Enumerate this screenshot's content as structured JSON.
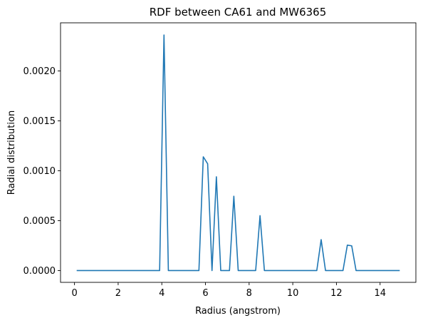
{
  "chart_data": {
    "type": "line",
    "title": "RDF between CA61 and MW6365",
    "xlabel": "Radius (angstrom)",
    "ylabel": "Radial distribution",
    "xlim": [
      -0.64,
      15.64
    ],
    "ylim": [
      -0.000118,
      0.002482
    ],
    "xticks": [
      0,
      2,
      4,
      6,
      8,
      10,
      12,
      14
    ],
    "xtick_labels": [
      "0",
      "2",
      "4",
      "6",
      "8",
      "10",
      "12",
      "14"
    ],
    "yticks": [
      0.0,
      0.0005,
      0.001,
      0.0015,
      0.002
    ],
    "ytick_labels": [
      "0.0000",
      "0.0005",
      "0.0010",
      "0.0015",
      "0.0020"
    ],
    "grid": false,
    "line_color": "#1f77b4",
    "series": [
      {
        "x": [
          0.1,
          3.9,
          4.1,
          4.3,
          5.7,
          5.9,
          6.1,
          6.3,
          6.5,
          6.7,
          7.1,
          7.3,
          7.5,
          8.3,
          8.5,
          8.7,
          11.1,
          11.3,
          11.5,
          12.3,
          12.5,
          12.7,
          12.9,
          14.9
        ],
        "y": [
          0.0,
          0.0,
          0.00236,
          0.0,
          0.0,
          0.00114,
          0.00107,
          0.0,
          0.00094,
          0.0,
          0.0,
          0.000745,
          0.0,
          0.0,
          0.00055,
          0.0,
          0.0,
          0.00031,
          0.0,
          0.0,
          0.000255,
          0.000248,
          0.0,
          0.0
        ]
      }
    ]
  }
}
